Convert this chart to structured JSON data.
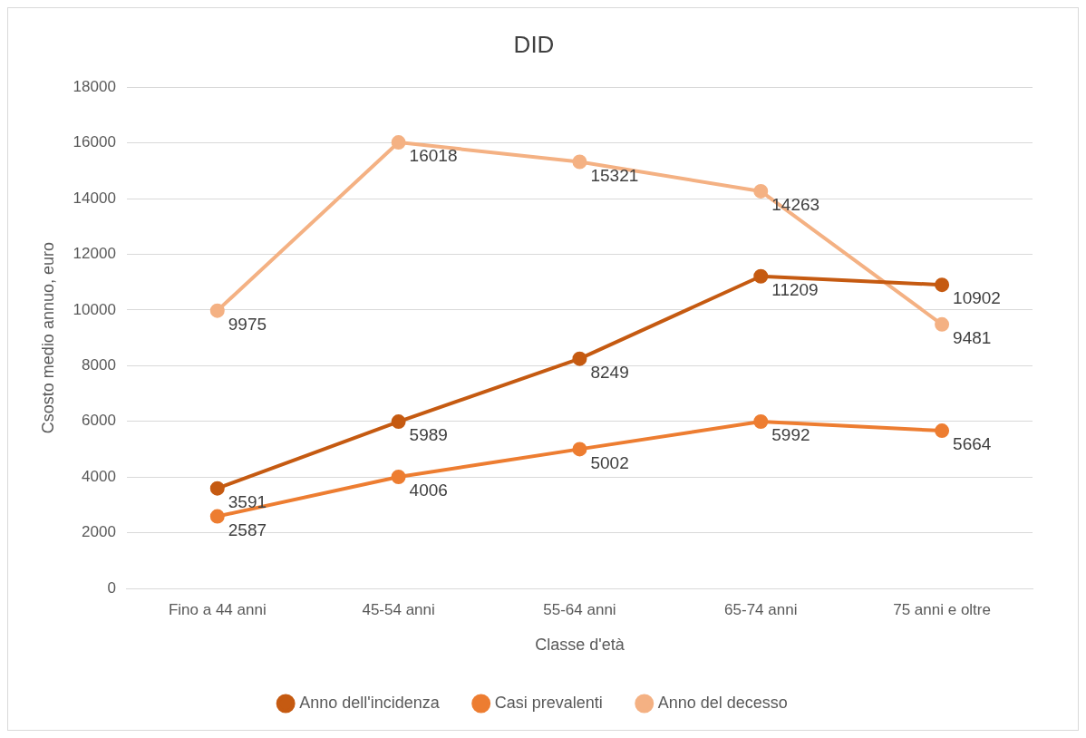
{
  "chart_data": {
    "type": "line",
    "title": "DID",
    "xlabel": "Classe d'età",
    "ylabel": "Csosto medio annuo, euro",
    "categories": [
      "Fino a 44 anni",
      "45-54 anni",
      "55-64 anni",
      "65-74 anni",
      "75 anni e oltre"
    ],
    "series": [
      {
        "name": "Anno dell'incidenza",
        "color": "#c55a11",
        "values": [
          3591,
          5989,
          8249,
          11209,
          10902
        ]
      },
      {
        "name": "Casi prevalenti",
        "color": "#ed7d31",
        "values": [
          2587,
          4006,
          5002,
          5992,
          5664
        ]
      },
      {
        "name": "Anno del decesso",
        "color": "#f4b183",
        "values": [
          9975,
          16018,
          15321,
          14263,
          9481
        ]
      }
    ],
    "ylim": [
      0,
      18000
    ],
    "yticks": [
      0,
      2000,
      4000,
      6000,
      8000,
      10000,
      12000,
      14000,
      16000,
      18000
    ],
    "grid": "y",
    "legend": "bottom",
    "marker": "circle",
    "line_style": "solid",
    "data_labels": true
  }
}
